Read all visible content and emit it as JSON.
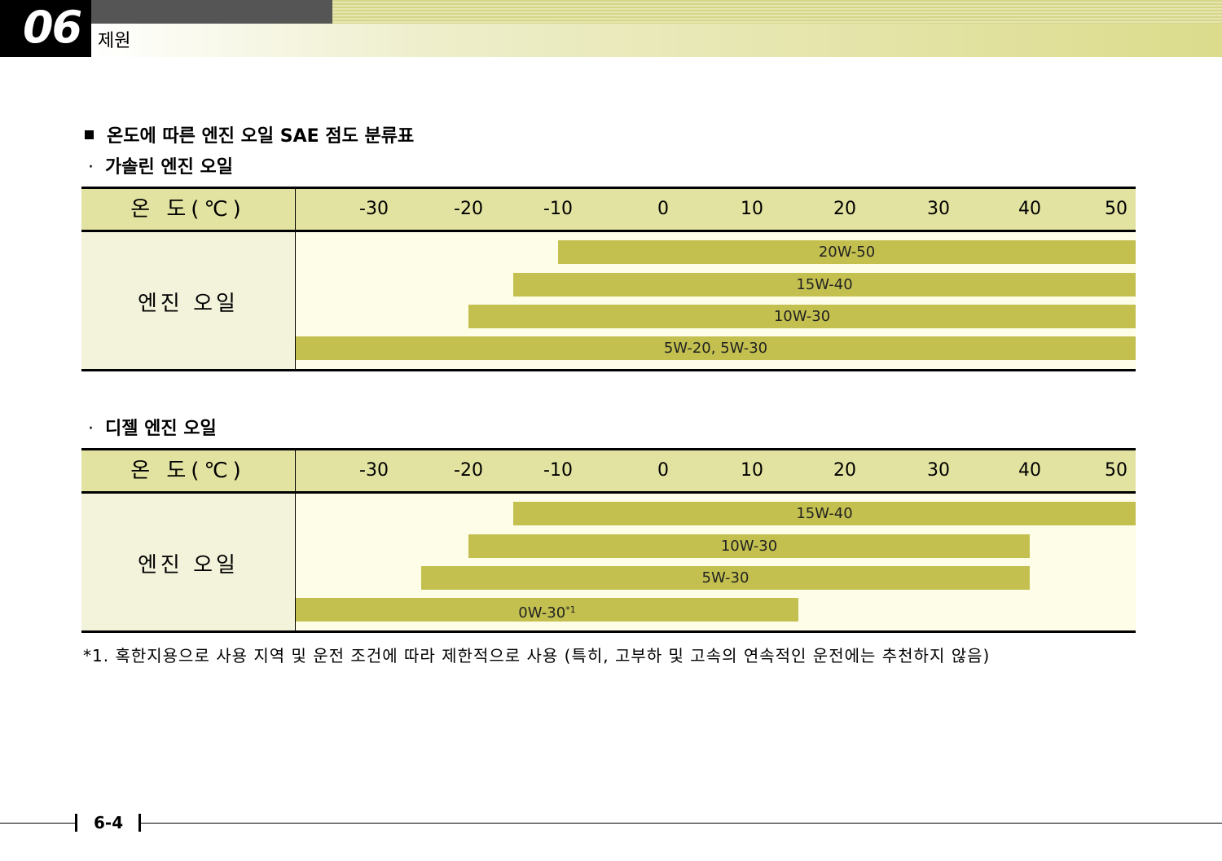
{
  "header": {
    "chapter_num": "06",
    "chapter_title": "제원"
  },
  "section_title": "온도에 따른 엔진 오일 SAE 점도 분류표",
  "temp_label": "온 도(℃)",
  "row_label": "엔진 오일",
  "ticks": [
    "-30",
    "-20",
    "-10",
    "0",
    "10",
    "20",
    "30",
    "40",
    "50"
  ],
  "gasoline": {
    "subtitle": "가솔린 엔진 오일",
    "bars": [
      {
        "label": "20W-50",
        "from": -10,
        "to": 50
      },
      {
        "label": "15W-40",
        "from": -15,
        "to": 50
      },
      {
        "label": "10W-30",
        "from": -20,
        "to": 50
      },
      {
        "label": "5W-20, 5W-30",
        "from": -35,
        "to": 50
      }
    ]
  },
  "diesel": {
    "subtitle": "디젤 엔진 오일",
    "bars": [
      {
        "label": "15W-40",
        "from": -15,
        "to": 50,
        "mark": ""
      },
      {
        "label": "10W-30",
        "from": -20,
        "to": 40,
        "mark": ""
      },
      {
        "label": "5W-30",
        "from": -25,
        "to": 40,
        "mark": ""
      },
      {
        "label": "0W-30",
        "from": -35,
        "to": 15,
        "mark": "*1"
      }
    ]
  },
  "footnote": "*1. 혹한지용으로 사용 지역 및 운전 조건에 따라 제한적으로 사용 (특히, 고부하 및 고속의 연속적인 운전에는 추천하지 않음)",
  "page_number": "6-4"
}
